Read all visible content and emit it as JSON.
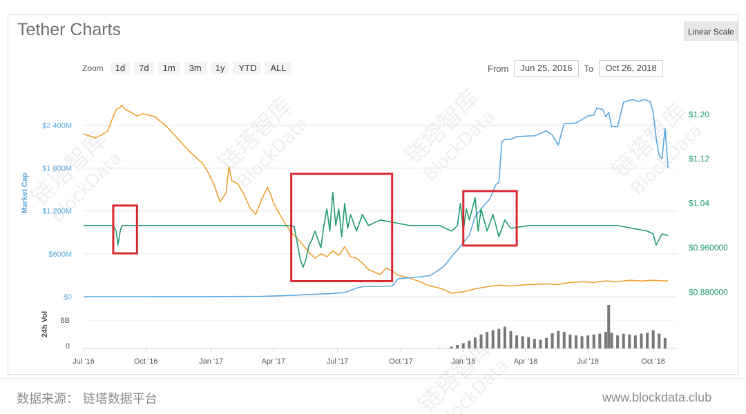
{
  "title": "Tether Charts",
  "scale_button": "Linear Scale",
  "zoom": {
    "label": "Zoom",
    "buttons": [
      "1d",
      "7d",
      "1m",
      "3m",
      "1y",
      "YTD",
      "ALL"
    ]
  },
  "range": {
    "from_label": "From",
    "from_value": "Jun 25, 2016",
    "to_label": "To",
    "to_value": "Oct 26, 2018"
  },
  "footer": {
    "source": "数据来源： 链塔数据平台",
    "site": "www.blockdata.club"
  },
  "watermark": [
    "链塔智库",
    "BlockData"
  ],
  "colors": {
    "market_cap": "#5aa7de",
    "price_usd": "#1f9a6b",
    "price_btc": "#f0a030",
    "volume": "#777777",
    "highlight_box": "#d8282f"
  },
  "chart_data": {
    "type": "line",
    "x_ticks": [
      "Jul '16",
      "Oct '16",
      "Jan '17",
      "Apr '17",
      "Jul '17",
      "Oct '17",
      "Jan '18",
      "Apr '18",
      "Jul '18",
      "Oct '18"
    ],
    "left_axis": {
      "label": "Market Cap",
      "ticks": [
        "$0",
        "$600M",
        "$1 200M",
        "$1 800M",
        "$2 400M"
      ],
      "range": [
        0,
        2800
      ]
    },
    "right_axis": {
      "ticks": [
        "$0.880000",
        "$0.960000",
        "$1.04",
        "$1.12",
        "$1.20"
      ],
      "range": [
        0.872,
        1.232
      ]
    },
    "volume_axis": {
      "label": "24h Vol",
      "ticks": [
        "0",
        "8B"
      ]
    },
    "series": [
      {
        "axis": "left",
        "points": [
          [
            0,
            0
          ],
          [
            0.1,
            0
          ],
          [
            0.2,
            1
          ],
          [
            0.3,
            5
          ],
          [
            0.34,
            15
          ],
          [
            0.38,
            30
          ],
          [
            0.42,
            45
          ],
          [
            0.44,
            58
          ],
          [
            0.45,
            90
          ],
          [
            0.46,
            120
          ],
          [
            0.47,
            140
          ],
          [
            0.52,
            150
          ],
          [
            0.53,
            250
          ],
          [
            0.57,
            280
          ],
          [
            0.585,
            300
          ],
          [
            0.6,
            380
          ],
          [
            0.61,
            450
          ],
          [
            0.62,
            560
          ],
          [
            0.625,
            610
          ],
          [
            0.63,
            650
          ],
          [
            0.64,
            760
          ],
          [
            0.65,
            860
          ],
          [
            0.66,
            1120
          ],
          [
            0.675,
            1280
          ],
          [
            0.685,
            1370
          ],
          [
            0.695,
            1570
          ],
          [
            0.7,
            1600
          ],
          [
            0.705,
            2170
          ],
          [
            0.71,
            2200
          ],
          [
            0.72,
            2200
          ],
          [
            0.73,
            2240
          ],
          [
            0.75,
            2250
          ],
          [
            0.76,
            2250
          ],
          [
            0.78,
            2320
          ],
          [
            0.79,
            2260
          ],
          [
            0.8,
            2120
          ],
          [
            0.805,
            2280
          ],
          [
            0.81,
            2420
          ],
          [
            0.83,
            2430
          ],
          [
            0.85,
            2530
          ],
          [
            0.86,
            2540
          ],
          [
            0.865,
            2640
          ],
          [
            0.875,
            2620
          ],
          [
            0.88,
            2520
          ],
          [
            0.885,
            2580
          ],
          [
            0.89,
            2380
          ],
          [
            0.9,
            2380
          ],
          [
            0.91,
            2720
          ],
          [
            0.925,
            2760
          ],
          [
            0.935,
            2730
          ],
          [
            0.945,
            2760
          ],
          [
            0.955,
            2730
          ],
          [
            0.96,
            2580
          ],
          [
            0.965,
            2220
          ],
          [
            0.97,
            1980
          ],
          [
            0.975,
            1930
          ],
          [
            0.98,
            2360
          ],
          [
            0.985,
            1800
          ]
        ]
      },
      {
        "axis": "right",
        "points": [
          [
            0,
            1.0
          ],
          [
            0.05,
            1.0
          ],
          [
            0.055,
            0.99
          ],
          [
            0.058,
            0.965
          ],
          [
            0.062,
            0.992
          ],
          [
            0.065,
            1.0
          ],
          [
            0.35,
            1.0
          ],
          [
            0.355,
            0.998
          ],
          [
            0.36,
            0.97
          ],
          [
            0.365,
            0.94
          ],
          [
            0.37,
            0.925
          ],
          [
            0.375,
            0.94
          ],
          [
            0.38,
            0.965
          ],
          [
            0.385,
            0.975
          ],
          [
            0.39,
            0.99
          ],
          [
            0.4,
            0.96
          ],
          [
            0.405,
            1.0
          ],
          [
            0.41,
            1.03
          ],
          [
            0.415,
            0.99
          ],
          [
            0.42,
            1.06
          ],
          [
            0.425,
            1.0
          ],
          [
            0.43,
            1.03
          ],
          [
            0.435,
            0.98
          ],
          [
            0.44,
            1.04
          ],
          [
            0.445,
            0.995
          ],
          [
            0.45,
            1.02
          ],
          [
            0.46,
            0.99
          ],
          [
            0.47,
            1.02
          ],
          [
            0.48,
            1.0
          ],
          [
            0.5,
            1.01
          ],
          [
            0.55,
            1.0
          ],
          [
            0.6,
            1.0
          ],
          [
            0.62,
            0.99
          ],
          [
            0.63,
            1.0
          ],
          [
            0.635,
            1.04
          ],
          [
            0.64,
            0.99
          ],
          [
            0.645,
            1.03
          ],
          [
            0.65,
            1.01
          ],
          [
            0.66,
            1.05
          ],
          [
            0.665,
            0.99
          ],
          [
            0.67,
            1.03
          ],
          [
            0.68,
            0.99
          ],
          [
            0.69,
            1.02
          ],
          [
            0.7,
            0.98
          ],
          [
            0.71,
            1.01
          ],
          [
            0.72,
            0.995
          ],
          [
            0.75,
            1.0
          ],
          [
            0.8,
            1.0
          ],
          [
            0.85,
            1.0
          ],
          [
            0.9,
            1.0
          ],
          [
            0.95,
            0.99
          ],
          [
            0.96,
            0.985
          ],
          [
            0.965,
            0.965
          ],
          [
            0.97,
            0.975
          ],
          [
            0.975,
            0.985
          ],
          [
            0.985,
            0.982
          ]
        ]
      },
      {
        "axis": "left",
        "points": [
          [
            0,
            2280
          ],
          [
            0.02,
            2220
          ],
          [
            0.04,
            2310
          ],
          [
            0.05,
            2520
          ],
          [
            0.055,
            2620
          ],
          [
            0.06,
            2640
          ],
          [
            0.065,
            2680
          ],
          [
            0.07,
            2620
          ],
          [
            0.08,
            2580
          ],
          [
            0.09,
            2530
          ],
          [
            0.1,
            2560
          ],
          [
            0.12,
            2520
          ],
          [
            0.14,
            2380
          ],
          [
            0.16,
            2200
          ],
          [
            0.18,
            2020
          ],
          [
            0.2,
            1870
          ],
          [
            0.21,
            1740
          ],
          [
            0.22,
            1560
          ],
          [
            0.23,
            1330
          ],
          [
            0.24,
            1450
          ],
          [
            0.245,
            1820
          ],
          [
            0.25,
            1620
          ],
          [
            0.26,
            1580
          ],
          [
            0.27,
            1440
          ],
          [
            0.28,
            1250
          ],
          [
            0.29,
            1150
          ],
          [
            0.3,
            1360
          ],
          [
            0.31,
            1530
          ],
          [
            0.315,
            1440
          ],
          [
            0.32,
            1310
          ],
          [
            0.33,
            1160
          ],
          [
            0.34,
            1020
          ],
          [
            0.35,
            900
          ],
          [
            0.36,
            820
          ],
          [
            0.37,
            720
          ],
          [
            0.38,
            620
          ],
          [
            0.39,
            540
          ],
          [
            0.4,
            600
          ],
          [
            0.41,
            560
          ],
          [
            0.42,
            640
          ],
          [
            0.43,
            580
          ],
          [
            0.44,
            700
          ],
          [
            0.45,
            560
          ],
          [
            0.46,
            540
          ],
          [
            0.47,
            470
          ],
          [
            0.48,
            380
          ],
          [
            0.5,
            310
          ],
          [
            0.51,
            400
          ],
          [
            0.52,
            360
          ],
          [
            0.53,
            300
          ],
          [
            0.55,
            260
          ],
          [
            0.57,
            200
          ],
          [
            0.58,
            160
          ],
          [
            0.6,
            120
          ],
          [
            0.61,
            90
          ],
          [
            0.62,
            50
          ],
          [
            0.64,
            70
          ],
          [
            0.66,
            110
          ],
          [
            0.68,
            140
          ],
          [
            0.7,
            160
          ],
          [
            0.72,
            150
          ],
          [
            0.75,
            170
          ],
          [
            0.78,
            180
          ],
          [
            0.8,
            170
          ],
          [
            0.82,
            200
          ],
          [
            0.84,
            210
          ],
          [
            0.86,
            200
          ],
          [
            0.88,
            220
          ],
          [
            0.9,
            210
          ],
          [
            0.92,
            230
          ],
          [
            0.94,
            220
          ],
          [
            0.96,
            230
          ],
          [
            0.98,
            220
          ],
          [
            0.985,
            225
          ]
        ]
      }
    ],
    "volume_points": [
      [
        0.6,
        0.01
      ],
      [
        0.62,
        0.04
      ],
      [
        0.63,
        0.08
      ],
      [
        0.64,
        0.12
      ],
      [
        0.65,
        0.18
      ],
      [
        0.66,
        0.25
      ],
      [
        0.67,
        0.32
      ],
      [
        0.68,
        0.38
      ],
      [
        0.69,
        0.42
      ],
      [
        0.7,
        0.45
      ],
      [
        0.71,
        0.5
      ],
      [
        0.72,
        0.4
      ],
      [
        0.73,
        0.3
      ],
      [
        0.74,
        0.28
      ],
      [
        0.75,
        0.26
      ],
      [
        0.76,
        0.22
      ],
      [
        0.77,
        0.2
      ],
      [
        0.78,
        0.24
      ],
      [
        0.79,
        0.35
      ],
      [
        0.8,
        0.4
      ],
      [
        0.81,
        0.38
      ],
      [
        0.82,
        0.32
      ],
      [
        0.83,
        0.3
      ],
      [
        0.84,
        0.28
      ],
      [
        0.85,
        0.3
      ],
      [
        0.86,
        0.32
      ],
      [
        0.87,
        0.34
      ],
      [
        0.88,
        0.38
      ],
      [
        0.885,
        1.0
      ],
      [
        0.89,
        0.36
      ],
      [
        0.9,
        0.3
      ],
      [
        0.91,
        0.34
      ],
      [
        0.92,
        0.32
      ],
      [
        0.93,
        0.3
      ],
      [
        0.94,
        0.34
      ],
      [
        0.95,
        0.36
      ],
      [
        0.96,
        0.42
      ],
      [
        0.97,
        0.34
      ],
      [
        0.98,
        0.24
      ]
    ],
    "highlight_boxes": [
      {
        "from_x": 0.05,
        "to_x": 0.09,
        "from_y": 0.95,
        "to_y": 1.036
      },
      {
        "from_x": 0.35,
        "to_x": 0.52,
        "from_y": 0.9,
        "to_y": 1.093
      },
      {
        "from_x": 0.64,
        "to_x": 0.73,
        "from_y": 0.964,
        "to_y": 1.062
      }
    ]
  }
}
